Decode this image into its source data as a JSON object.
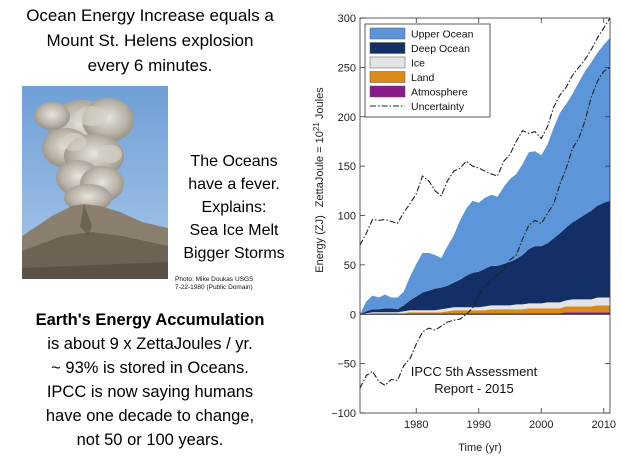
{
  "left": {
    "headline": [
      "Ocean Energy Increase equals a",
      "Mount St. Helens explosion",
      "every 6 minutes."
    ],
    "fever_text": [
      "The Oceans",
      "have a fever.",
      "Explains:",
      "Sea Ice Melt",
      "Bigger Storms"
    ],
    "photo_credit": [
      "Photo: Mike Doukas USGS",
      "7-22-1980 (Public Domain)"
    ],
    "summary_title": "Earth's Energy Accumulation",
    "summary_lines": [
      "is about 9 x ZettaJoules / yr.",
      "~ 93% is stored in Oceans.",
      "IPCC is now saying humans",
      "have one decade to change,",
      "not 50 or 100 years."
    ]
  },
  "chart_data": {
    "type": "area",
    "title": "",
    "xlabel": "Time (yr)",
    "ylabel_main": "Energy (ZJ)",
    "ylabel_unit_prefix": "ZettaJoule = 10",
    "ylabel_unit_exp": "21",
    "ylabel_unit_suffix": " Joules",
    "xlim": [
      1971,
      2011
    ],
    "ylim": [
      -100,
      300
    ],
    "xticks": [
      1980,
      1990,
      2000,
      2010
    ],
    "yticks": [
      -100,
      -50,
      0,
      50,
      100,
      150,
      200,
      250,
      300
    ],
    "stacked": true,
    "legend_position": "top-left",
    "annotation": [
      "IPCC 5th Assessment",
      "Report - 2015"
    ],
    "x": [
      1971,
      1972,
      1973,
      1974,
      1975,
      1976,
      1977,
      1978,
      1979,
      1980,
      1981,
      1982,
      1983,
      1984,
      1985,
      1986,
      1987,
      1988,
      1989,
      1990,
      1991,
      1992,
      1993,
      1994,
      1995,
      1996,
      1997,
      1998,
      1999,
      2000,
      2001,
      2002,
      2003,
      2004,
      2005,
      2006,
      2007,
      2008,
      2009,
      2010,
      2011
    ],
    "series": [
      {
        "name": "Atmosphere",
        "color": "#8b1a8b",
        "values": [
          0,
          0,
          0,
          0,
          0,
          0,
          0,
          0,
          0,
          0,
          0,
          0,
          0,
          0,
          1,
          1,
          1,
          1,
          1,
          1,
          1,
          1,
          1,
          1,
          1,
          1,
          1,
          1,
          1,
          1,
          1,
          1,
          1,
          2,
          2,
          2,
          2,
          2,
          2,
          2,
          2
        ]
      },
      {
        "name": "Land",
        "color": "#d98a1a",
        "values": [
          0,
          0,
          1,
          1,
          1,
          1,
          1,
          1,
          2,
          2,
          2,
          2,
          2,
          2,
          2,
          3,
          3,
          3,
          3,
          3,
          3,
          4,
          4,
          4,
          4,
          4,
          4,
          5,
          5,
          5,
          5,
          5,
          5,
          6,
          6,
          6,
          6,
          6,
          7,
          7,
          7
        ]
      },
      {
        "name": "Ice",
        "color": "#e4e4e4",
        "values": [
          0,
          1,
          1,
          1,
          1,
          1,
          1,
          2,
          2,
          2,
          2,
          2,
          2,
          3,
          3,
          3,
          3,
          3,
          3,
          3,
          4,
          4,
          4,
          4,
          4,
          5,
          5,
          5,
          5,
          5,
          6,
          6,
          6,
          6,
          7,
          7,
          7,
          7,
          8,
          8,
          8
        ]
      },
      {
        "name": "Deep Ocean",
        "color": "#142f66",
        "values": [
          0,
          2,
          3,
          3,
          4,
          4,
          3,
          6,
          10,
          14,
          18,
          20,
          22,
          22,
          23,
          25,
          28,
          32,
          35,
          36,
          38,
          40,
          40,
          42,
          44,
          46,
          50,
          55,
          58,
          58,
          60,
          65,
          70,
          74,
          78,
          82,
          86,
          90,
          93,
          96,
          98
        ]
      },
      {
        "name": "Upper Ocean",
        "color": "#5d96d8",
        "values": [
          0,
          10,
          14,
          12,
          14,
          11,
          12,
          14,
          24,
          33,
          40,
          38,
          34,
          30,
          40,
          48,
          60,
          68,
          73,
          70,
          72,
          72,
          70,
          78,
          84,
          86,
          92,
          98,
          96,
          92,
          100,
          112,
          122,
          125,
          130,
          138,
          145,
          150,
          155,
          160,
          165
        ]
      }
    ],
    "uncertainty": {
      "name": "Uncertainty",
      "upper": [
        70,
        82,
        96,
        95,
        96,
        94,
        92,
        103,
        112,
        122,
        140,
        135,
        125,
        120,
        135,
        145,
        148,
        155,
        150,
        148,
        145,
        142,
        140,
        155,
        162,
        175,
        186,
        183,
        185,
        178,
        190,
        210,
        222,
        230,
        242,
        250,
        258,
        268,
        280,
        290,
        300
      ],
      "lower": [
        -75,
        -62,
        -58,
        -68,
        -72,
        -66,
        -67,
        -52,
        -45,
        -30,
        -18,
        -14,
        -16,
        -12,
        -8,
        -6,
        -5,
        0,
        6,
        20,
        28,
        34,
        40,
        46,
        55,
        60,
        76,
        90,
        95,
        92,
        102,
        112,
        132,
        148,
        168,
        178,
        196,
        220,
        236,
        246,
        250
      ]
    },
    "legend_order": [
      "Upper Ocean",
      "Deep Ocean",
      "Ice",
      "Land",
      "Atmosphere",
      "Uncertainty"
    ]
  }
}
